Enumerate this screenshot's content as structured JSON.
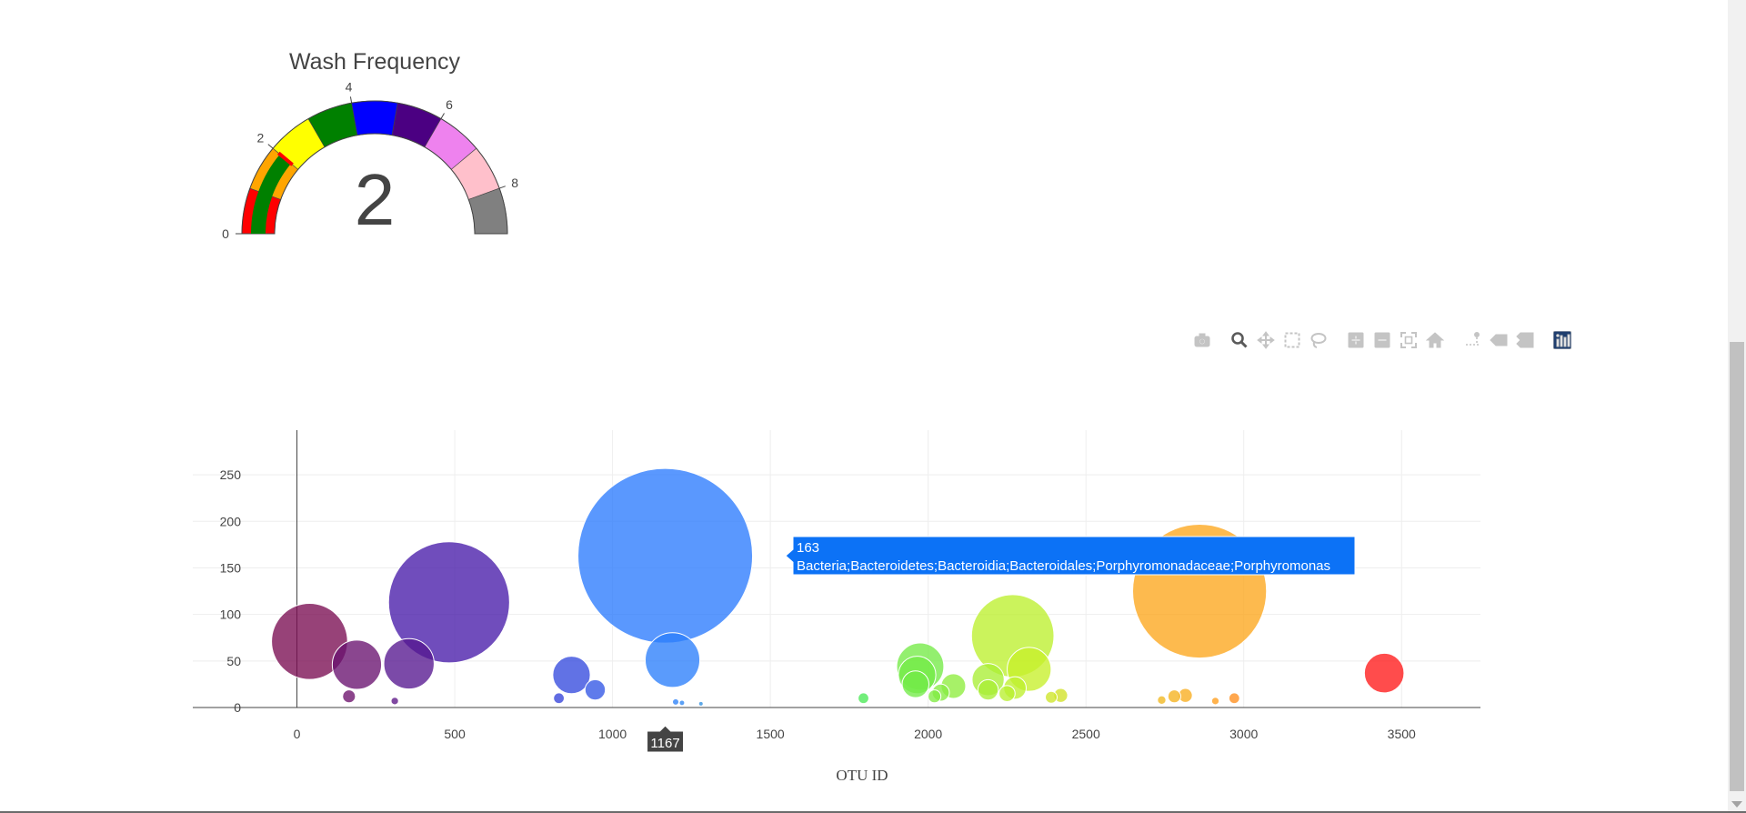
{
  "chart_data": [
    {
      "type": "gauge",
      "title": "Wash Frequency",
      "value": 2,
      "range": [
        0,
        9
      ],
      "tick_labels": [
        "0",
        "2",
        "4",
        "6",
        "8"
      ],
      "steps": [
        {
          "from": 0,
          "to": 1,
          "color": "#ff0000"
        },
        {
          "from": 1,
          "to": 2,
          "color": "#ffa500"
        },
        {
          "from": 2,
          "to": 3,
          "color": "#ffff00"
        },
        {
          "from": 3,
          "to": 4,
          "color": "#008000"
        },
        {
          "from": 4,
          "to": 5,
          "color": "#0000ff"
        },
        {
          "from": 5,
          "to": 6,
          "color": "#4b0082"
        },
        {
          "from": 6,
          "to": 7,
          "color": "#ee82ee"
        },
        {
          "from": 7,
          "to": 8,
          "color": "#ffc0cb"
        },
        {
          "from": 8,
          "to": 9,
          "color": "#808080"
        }
      ],
      "bar_color": "#008000",
      "threshold": 2,
      "threshold_color": "#ff0000"
    },
    {
      "type": "scatter",
      "xlabel": "OTU ID",
      "ylabel": "",
      "xlim": [
        -330,
        3750
      ],
      "ylim": [
        0,
        298
      ],
      "x_ticks": [
        0,
        500,
        1000,
        1500,
        2000,
        2500,
        3000,
        3500
      ],
      "y_ticks": [
        0,
        50,
        100,
        150,
        200,
        250
      ],
      "grid": true,
      "colorscale": [
        "#7a0d52",
        "#3a1fc2",
        "#2c7cff",
        "#3de85a",
        "#c6f02a",
        "#ffa51c",
        "#ff1a1a"
      ],
      "points": [
        {
          "x": 40,
          "y": 71
        },
        {
          "x": 190,
          "y": 46
        },
        {
          "x": 355,
          "y": 47
        },
        {
          "x": 482,
          "y": 113
        },
        {
          "x": 165,
          "y": 12
        },
        {
          "x": 310,
          "y": 7
        },
        {
          "x": 870,
          "y": 35
        },
        {
          "x": 945,
          "y": 19
        },
        {
          "x": 830,
          "y": 10
        },
        {
          "x": 1167,
          "y": 163
        },
        {
          "x": 1190,
          "y": 51
        },
        {
          "x": 1200,
          "y": 6
        },
        {
          "x": 1220,
          "y": 5
        },
        {
          "x": 1280,
          "y": 4
        },
        {
          "x": 1795,
          "y": 10
        },
        {
          "x": 1975,
          "y": 44
        },
        {
          "x": 1965,
          "y": 35
        },
        {
          "x": 1960,
          "y": 25
        },
        {
          "x": 2020,
          "y": 12
        },
        {
          "x": 2040,
          "y": 16
        },
        {
          "x": 2080,
          "y": 23
        },
        {
          "x": 2190,
          "y": 30
        },
        {
          "x": 2190,
          "y": 19
        },
        {
          "x": 2250,
          "y": 15
        },
        {
          "x": 2275,
          "y": 21
        },
        {
          "x": 2268,
          "y": 77
        },
        {
          "x": 2320,
          "y": 41
        },
        {
          "x": 2390,
          "y": 11
        },
        {
          "x": 2420,
          "y": 13
        },
        {
          "x": 2740,
          "y": 8
        },
        {
          "x": 2780,
          "y": 12
        },
        {
          "x": 2815,
          "y": 13
        },
        {
          "x": 2860,
          "y": 125
        },
        {
          "x": 2910,
          "y": 7
        },
        {
          "x": 2970,
          "y": 10
        },
        {
          "x": 3445,
          "y": 37
        }
      ],
      "hover": {
        "x_label": "1167",
        "y": 163,
        "label": "Bacteria;Bacteroidetes;Bacteroidia;Bacteroidales;Porphyromonadaceae;Porphyromonas",
        "color": "#0c72f6"
      }
    }
  ],
  "modebar": {
    "buttons": [
      {
        "name": "camera-icon",
        "group": 0,
        "active": false
      },
      {
        "name": "zoom-icon",
        "group": 1,
        "active": true
      },
      {
        "name": "pan-icon",
        "group": 1,
        "active": false
      },
      {
        "name": "box-select-icon",
        "group": 1,
        "active": false
      },
      {
        "name": "lasso-select-icon",
        "group": 1,
        "active": false
      },
      {
        "name": "zoom-in-icon",
        "group": 2,
        "active": false
      },
      {
        "name": "zoom-out-icon",
        "group": 2,
        "active": false
      },
      {
        "name": "autoscale-icon",
        "group": 2,
        "active": false
      },
      {
        "name": "reset-axes-icon",
        "group": 2,
        "active": false
      },
      {
        "name": "spike-lines-icon",
        "group": 3,
        "active": false
      },
      {
        "name": "hover-closest-icon",
        "group": 3,
        "active": false
      },
      {
        "name": "hover-compare-icon",
        "group": 3,
        "active": false
      },
      {
        "name": "plotly-logo-icon",
        "group": 4,
        "active": false
      }
    ],
    "colors": {
      "idle": "#c4c4c4",
      "active": "#5a5a5a",
      "logo": "#1f3e6e"
    }
  }
}
